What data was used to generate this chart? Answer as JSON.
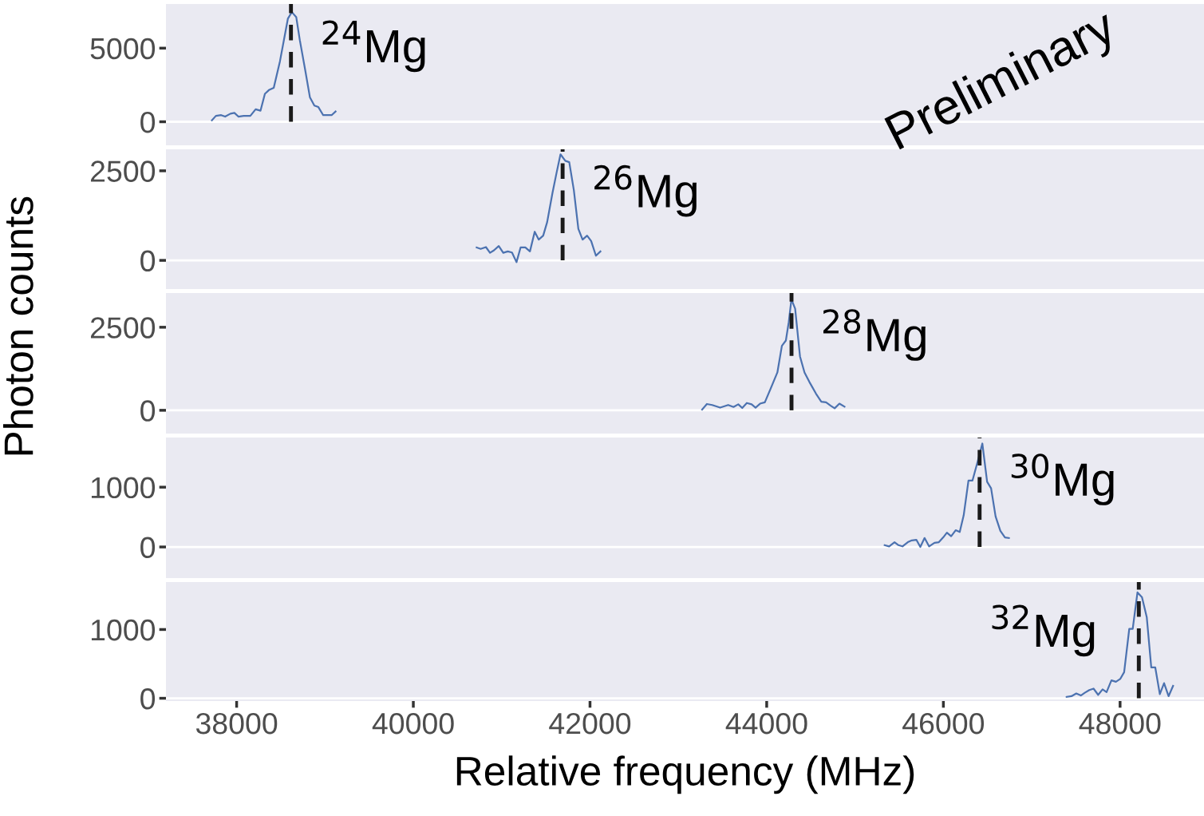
{
  "chart_data": [
    {
      "type": "line",
      "annotations": [
        "$^{24}$Mg",
        "Preliminary"
      ],
      "xlim": [
        37200,
        48950
      ],
      "xticks": [
        38000,
        40000,
        42000,
        44000,
        46000,
        48000
      ],
      "ylim": [
        -1600,
        8000
      ],
      "yticks": [
        0,
        5000
      ],
      "tick_labels": "y",
      "grid": false,
      "ref_lines": [
        {
          "axis": "y",
          "value": 0,
          "color": "#ffffff"
        },
        {
          "axis": "x",
          "value": 38615,
          "color": "#1a1a1a",
          "line_style": "dashed"
        }
      ],
      "series": [
        {
          "color": "#4c72b0",
          "x": [
            37720,
            37765,
            37825,
            37870,
            37930,
            37975,
            38020,
            38080,
            38155,
            38215,
            38270,
            38320,
            38365,
            38420,
            38490,
            38535,
            38580,
            38625,
            38675,
            38715,
            38775,
            38830,
            38880,
            38925,
            38980,
            39030,
            39075,
            39120
          ],
          "values": [
            100,
            400,
            450,
            350,
            550,
            600,
            350,
            400,
            400,
            850,
            750,
            1900,
            2150,
            2300,
            4100,
            5550,
            7000,
            7450,
            7100,
            5550,
            3550,
            1650,
            1100,
            1000,
            450,
            450,
            450,
            700
          ]
        }
      ]
    },
    {
      "type": "line",
      "annotations": [
        "$^{26}$Mg"
      ],
      "xlim": [
        37200,
        48950
      ],
      "xticks": [
        38000,
        40000,
        42000,
        44000,
        46000,
        48000
      ],
      "ylim": [
        -800,
        3100
      ],
      "yticks": [
        0,
        2500
      ],
      "tick_labels": "y",
      "grid": false,
      "ref_lines": [
        {
          "axis": "y",
          "value": 0,
          "color": "#ffffff"
        },
        {
          "axis": "x",
          "value": 41690,
          "color": "#1a1a1a",
          "line_style": "dashed"
        }
      ],
      "series": [
        {
          "color": "#4c72b0",
          "x": [
            40717,
            40762,
            40822,
            40868,
            40913,
            40967,
            41018,
            41069,
            41117,
            41168,
            41214,
            41268,
            41320,
            41374,
            41419,
            41470,
            41515,
            41575,
            41621,
            41666,
            41720,
            41765,
            41817,
            41868,
            41916,
            41967,
            42013,
            42067,
            42118
          ],
          "values": [
            360,
            320,
            370,
            210,
            280,
            400,
            210,
            250,
            220,
            -50,
            360,
            360,
            250,
            800,
            580,
            690,
            1070,
            1880,
            2440,
            2960,
            2780,
            2740,
            1960,
            880,
            580,
            690,
            540,
            130,
            250
          ]
        }
      ]
    },
    {
      "type": "line",
      "annotations": [
        "$^{28}$Mg"
      ],
      "xlim": [
        37200,
        48950
      ],
      "xticks": [
        38000,
        40000,
        42000,
        44000,
        46000,
        48000
      ],
      "ylim": [
        -700,
        3530
      ],
      "yticks": [
        0,
        2500
      ],
      "tick_labels": "y",
      "grid": false,
      "ylabel": "Photon counts",
      "ref_lines": [
        {
          "axis": "y",
          "value": 0,
          "color": "#ffffff"
        },
        {
          "axis": "x",
          "value": 44281,
          "color": "#1a1a1a",
          "line_style": "dashed"
        }
      ],
      "series": [
        {
          "color": "#4c72b0",
          "x": [
            43269,
            43323,
            43383,
            43473,
            43564,
            43624,
            43678,
            43723,
            43775,
            43829,
            43874,
            43925,
            43979,
            44046,
            44121,
            44172,
            44217,
            44250,
            44280,
            44322,
            44377,
            44428,
            44482,
            44558,
            44618,
            44672,
            44724,
            44769,
            44823,
            44881
          ],
          "values": [
            20,
            190,
            160,
            80,
            160,
            100,
            180,
            70,
            220,
            180,
            80,
            200,
            240,
            660,
            1140,
            1940,
            2100,
            2660,
            3340,
            3060,
            1620,
            1140,
            860,
            500,
            260,
            240,
            140,
            60,
            200,
            110
          ]
        }
      ]
    },
    {
      "type": "line",
      "annotations": [
        "$^{30}$Mg"
      ],
      "xlim": [
        37200,
        48950
      ],
      "xticks": [
        38000,
        40000,
        42000,
        44000,
        46000,
        48000
      ],
      "ylim": [
        -520,
        1830
      ],
      "yticks": [
        0,
        1000
      ],
      "tick_labels": "y",
      "grid": false,
      "ref_lines": [
        {
          "axis": "y",
          "value": 0,
          "color": "#ffffff"
        },
        {
          "axis": "x",
          "value": 46410,
          "color": "#1a1a1a",
          "line_style": "dashed"
        }
      ],
      "series": [
        {
          "color": "#4c72b0",
          "x": [
            45335,
            45386,
            45447,
            45492,
            45537,
            45597,
            45642,
            45694,
            45739,
            45787,
            45838,
            45899,
            45949,
            45998,
            46040,
            46088,
            46139,
            46185,
            46230,
            46284,
            46329,
            46390,
            46441,
            46495,
            46540,
            46591,
            46645,
            46697,
            46742
          ],
          "values": [
            30,
            10,
            80,
            30,
            10,
            80,
            110,
            120,
            0,
            150,
            10,
            70,
            80,
            160,
            240,
            180,
            280,
            250,
            530,
            1110,
            1110,
            1440,
            1730,
            1090,
            980,
            510,
            270,
            160,
            150
          ]
        }
      ]
    },
    {
      "type": "line",
      "annotations": [
        "$^{32}$Mg"
      ],
      "xlim": [
        37200,
        48950
      ],
      "xticks": [
        38000,
        40000,
        42000,
        44000,
        46000,
        48000
      ],
      "ylim": [
        -40,
        1690
      ],
      "yticks": [
        0,
        1000
      ],
      "grid": false,
      "xlabel": "Relative frequency (MHz)",
      "ref_lines": [
        {
          "axis": "y",
          "value": 0,
          "color": "#ffffff"
        },
        {
          "axis": "x",
          "value": 48212,
          "color": "#1a1a1a",
          "line_style": "dashed"
        }
      ],
      "series": [
        {
          "color": "#4c72b0",
          "x": [
            47395,
            47450,
            47504,
            47556,
            47601,
            47652,
            47700,
            47752,
            47802,
            47847,
            47902,
            47953,
            48001,
            48046,
            48104,
            48143,
            48197,
            48248,
            48302,
            48353,
            48398,
            48450,
            48498,
            48549,
            48600
          ],
          "values": [
            20,
            30,
            70,
            40,
            80,
            120,
            140,
            50,
            130,
            90,
            260,
            240,
            280,
            380,
            1010,
            1010,
            1540,
            1470,
            1180,
            450,
            450,
            60,
            220,
            30,
            180
          ]
        }
      ]
    }
  ]
}
